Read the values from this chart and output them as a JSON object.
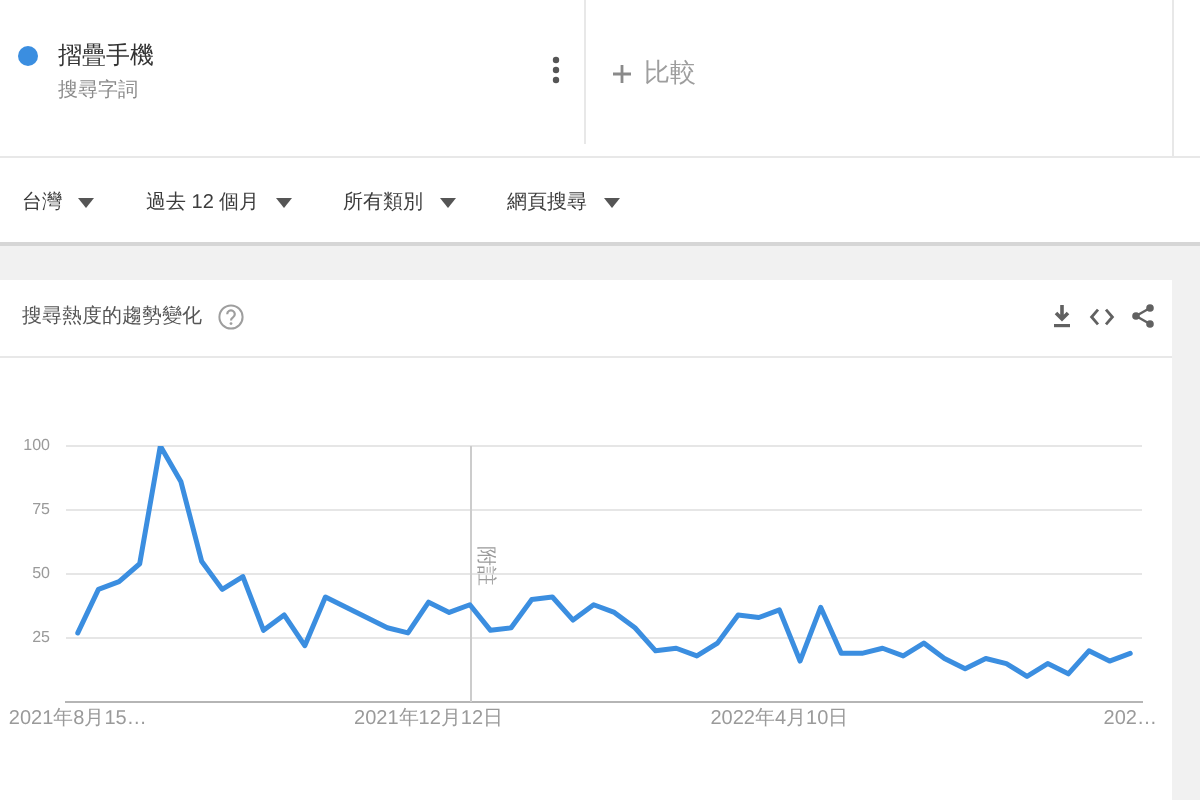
{
  "chart_data": {
    "type": "line",
    "title": "搜尋熱度的趨勢變化",
    "x": [
      "2021-08-15",
      "2021-08-22",
      "2021-08-29",
      "2021-09-05",
      "2021-09-12",
      "2021-09-19",
      "2021-09-26",
      "2021-10-03",
      "2021-10-10",
      "2021-10-17",
      "2021-10-24",
      "2021-10-31",
      "2021-11-07",
      "2021-11-14",
      "2021-11-21",
      "2021-11-28",
      "2021-12-05",
      "2021-12-12",
      "2021-12-19",
      "2021-12-26",
      "2022-01-02",
      "2022-01-09",
      "2022-01-16",
      "2022-01-23",
      "2022-01-30",
      "2022-02-06",
      "2022-02-13",
      "2022-02-20",
      "2022-02-27",
      "2022-03-06",
      "2022-03-13",
      "2022-03-20",
      "2022-03-27",
      "2022-04-03",
      "2022-04-10",
      "2022-04-17",
      "2022-04-24",
      "2022-05-01",
      "2022-05-08",
      "2022-05-15",
      "2022-05-22",
      "2022-05-29",
      "2022-06-05",
      "2022-06-12",
      "2022-06-19",
      "2022-06-26",
      "2022-07-03",
      "2022-07-10",
      "2022-07-17",
      "2022-07-24",
      "2022-07-31",
      "2022-08-07"
    ],
    "series": [
      {
        "name": "摺疊手機",
        "color": "#3b8ee0",
        "values": [
          27,
          44,
          47,
          54,
          100,
          86,
          55,
          44,
          49,
          28,
          34,
          22,
          41,
          37,
          33,
          29,
          27,
          39,
          35,
          38,
          28,
          29,
          40,
          41,
          32,
          38,
          35,
          29,
          20,
          21,
          18,
          23,
          34,
          33,
          36,
          16,
          37,
          19,
          19,
          21,
          18,
          23,
          17,
          13,
          17,
          15,
          10,
          15,
          11,
          20,
          16,
          19
        ]
      }
    ],
    "xlim": [
      "2021-08-11",
      "2022-08-11"
    ],
    "xticks": [
      {
        "value": "2021-08-15",
        "label": "2021年8月15…"
      },
      {
        "value": "2021-12-12",
        "label": "2021年12月12日"
      },
      {
        "value": "2022-04-10",
        "label": "2022年4月10日"
      },
      {
        "value": "2022-08-07",
        "label": "202…"
      }
    ],
    "ylim": [
      0,
      100
    ],
    "yticks": [
      25,
      50,
      75,
      100
    ],
    "grid": "y",
    "legend": "top left",
    "marker": "none",
    "line_style": "solid",
    "ref_lines": [
      {
        "axis": "x",
        "value": "2021-12-26",
        "label": "附註",
        "color": "#cccccc"
      }
    ],
    "annotations": [
      "搜尋字詞",
      "比較",
      "台灣",
      "過去 12 個月",
      "所有類別",
      "網頁搜尋"
    ]
  }
}
